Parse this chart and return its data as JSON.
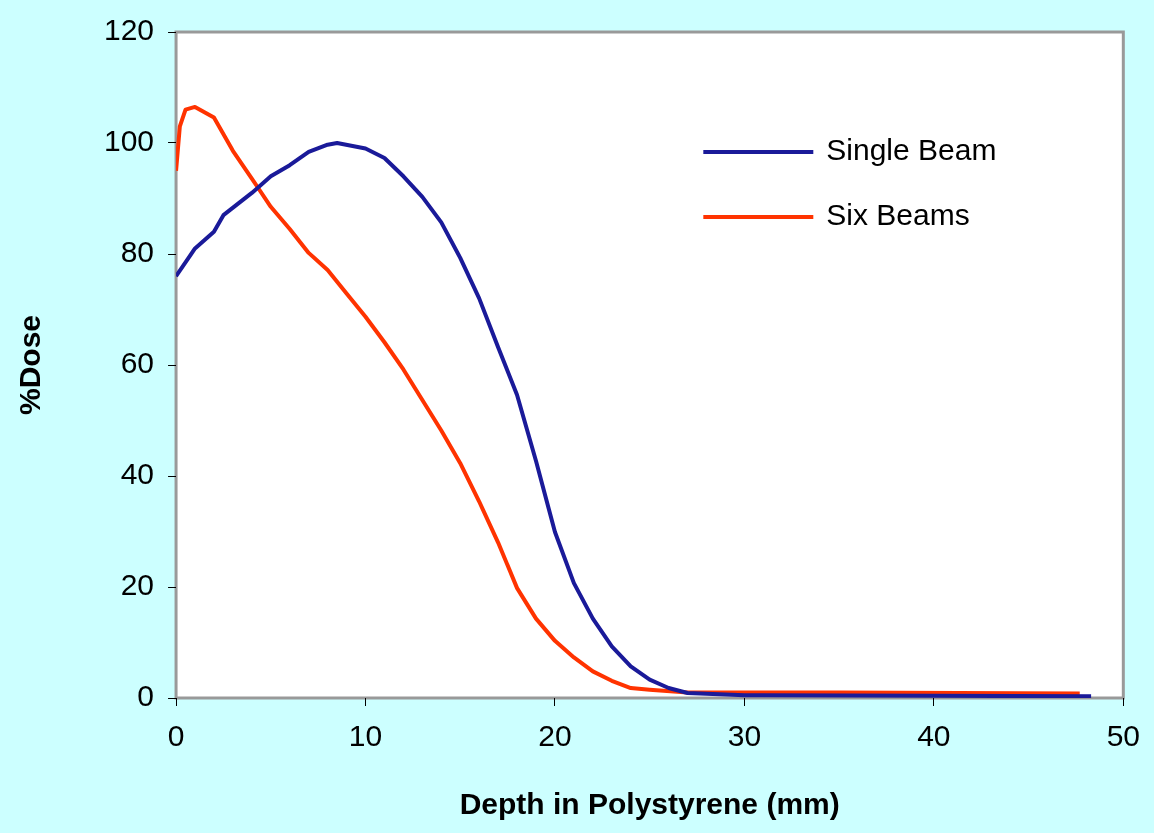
{
  "chart_data": {
    "type": "line",
    "xlabel": "Depth in Polystyrene (mm)",
    "ylabel": "%Dose",
    "xlim": [
      0,
      50
    ],
    "xticks": [
      0,
      10,
      20,
      30,
      40,
      50
    ],
    "ylim": [
      0,
      120
    ],
    "yticks": [
      0,
      20,
      40,
      60,
      80,
      100,
      120
    ],
    "grid": false,
    "legend": "top right",
    "series": [
      {
        "name": "Single Beam",
        "color": "#1a1a99",
        "x": [
          0,
          1,
          2,
          2.5,
          4,
          5,
          6,
          7,
          8,
          8.5,
          10,
          11,
          12,
          13,
          14,
          15,
          16,
          17,
          18,
          19,
          20,
          21,
          22,
          23,
          24,
          25,
          26,
          27,
          30,
          40,
          48.3
        ],
        "values": [
          76,
          81,
          84,
          87,
          91,
          94,
          96,
          98.4,
          99.7,
          100,
          99,
          97.3,
          94,
          90.3,
          85.7,
          79.3,
          72,
          63.2,
          54.6,
          42.7,
          29.9,
          20.7,
          14.3,
          9.3,
          5.7,
          3.3,
          1.8,
          0.9,
          0.5,
          0.4,
          0.3
        ]
      },
      {
        "name": "Six Beams",
        "color": "#ff3300",
        "x": [
          0,
          0.2,
          0.5,
          1,
          2,
          3,
          4,
          5,
          6,
          7,
          8,
          9,
          10,
          11,
          12,
          13,
          14,
          15,
          16,
          17,
          18,
          19,
          20,
          21,
          22,
          23,
          24,
          25,
          27,
          35,
          47.7
        ],
        "values": [
          95,
          103,
          106,
          106.5,
          104.6,
          98.6,
          93.6,
          88.5,
          84.5,
          80.2,
          77.1,
          72.9,
          68.7,
          64.1,
          59.2,
          53.7,
          48.2,
          42.3,
          35.4,
          28,
          19.8,
          14.3,
          10.3,
          7.3,
          4.8,
          3.1,
          1.8,
          1.5,
          1,
          1,
          0.8
        ]
      }
    ]
  }
}
